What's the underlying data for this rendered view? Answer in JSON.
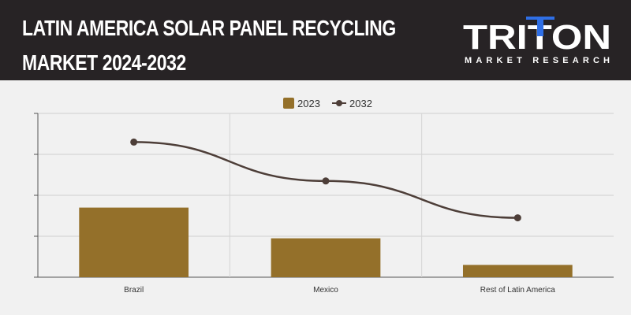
{
  "header": {
    "title_line1": "LATIN AMERICA SOLAR PANEL RECYCLING",
    "title_line2": "MARKET 2024-2032",
    "logo_text": "TRITON",
    "logo_subtext": "MARKET RESEARCH"
  },
  "colors": {
    "header_bg": "#272325",
    "bar": "#94702a",
    "line": "#4d3e38",
    "logo_accent": "#2f6fe6"
  },
  "chart_data": {
    "type": "bar",
    "categories": [
      "Brazil",
      "Mexico",
      "Rest of Latin America"
    ],
    "series": [
      {
        "name": "2023",
        "type": "bar",
        "values": [
          1.7,
          0.95,
          0.3
        ]
      },
      {
        "name": "2032",
        "type": "line",
        "values": [
          3.3,
          2.35,
          1.45
        ]
      }
    ],
    "ylim": [
      0,
      4
    ],
    "y_tick_labels_shown": false,
    "grid": true,
    "legend": "top-center"
  }
}
